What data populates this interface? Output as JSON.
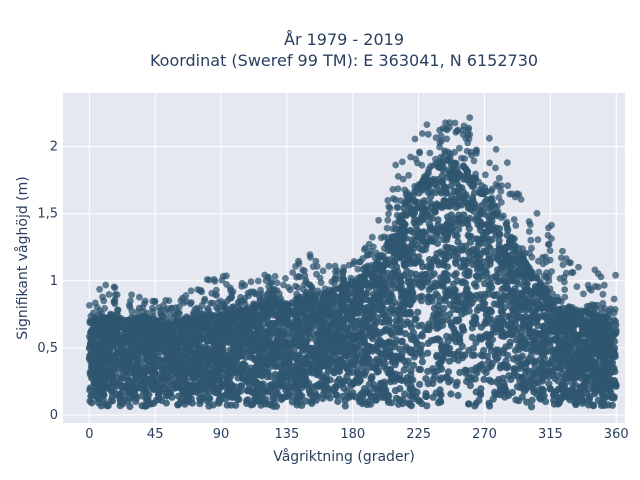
{
  "chart_data": {
    "type": "scatter",
    "title_line1": "År 1979 - 2019",
    "title_line2": "Koordinat (Sweref 99 TM): E 363041, N 6152730",
    "xlabel": "Vågriktning (grader)",
    "ylabel": "Signifikant våghöjd (m)",
    "xlim": [
      -18,
      366
    ],
    "ylim": [
      -0.06,
      2.4
    ],
    "x_ticks": [
      0,
      45,
      90,
      135,
      180,
      225,
      270,
      315,
      360
    ],
    "x_tick_labels": [
      "0",
      "45",
      "90",
      "135",
      "180",
      "225",
      "270",
      "315",
      "360"
    ],
    "y_ticks": [
      0,
      0.5,
      1,
      1.5,
      2
    ],
    "y_tick_labels": [
      "0",
      "0,5",
      "1",
      "1,5",
      "2"
    ],
    "grid": true,
    "marker_color": "#2f5670",
    "plot_background": "#e5e8f0",
    "envelope": {
      "direction": [
        0,
        15,
        30,
        45,
        60,
        75,
        90,
        105,
        120,
        135,
        150,
        165,
        180,
        195,
        205,
        215,
        225,
        235,
        245,
        255,
        265,
        275,
        285,
        295,
        305,
        315,
        325,
        335,
        345,
        355,
        360
      ],
      "typical_max_height": [
        0.7,
        0.72,
        0.72,
        0.7,
        0.7,
        0.72,
        0.75,
        0.78,
        0.82,
        0.85,
        0.88,
        0.92,
        0.98,
        1.1,
        1.3,
        1.55,
        1.7,
        1.85,
        1.9,
        1.85,
        1.75,
        1.6,
        1.4,
        1.2,
        1.0,
        0.9,
        0.82,
        0.78,
        0.75,
        0.72,
        0.7
      ],
      "outlier_max_height": [
        0.95,
        1.0,
        0.9,
        0.88,
        0.85,
        1.0,
        1.07,
        1.02,
        1.05,
        1.1,
        1.22,
        1.12,
        1.15,
        1.35,
        1.8,
        2.0,
        2.15,
        2.25,
        2.26,
        2.2,
        2.28,
        2.18,
        1.9,
        1.75,
        1.6,
        1.5,
        1.2,
        1.15,
        1.1,
        1.05,
        1.05
      ],
      "min_height": 0.06
    }
  }
}
